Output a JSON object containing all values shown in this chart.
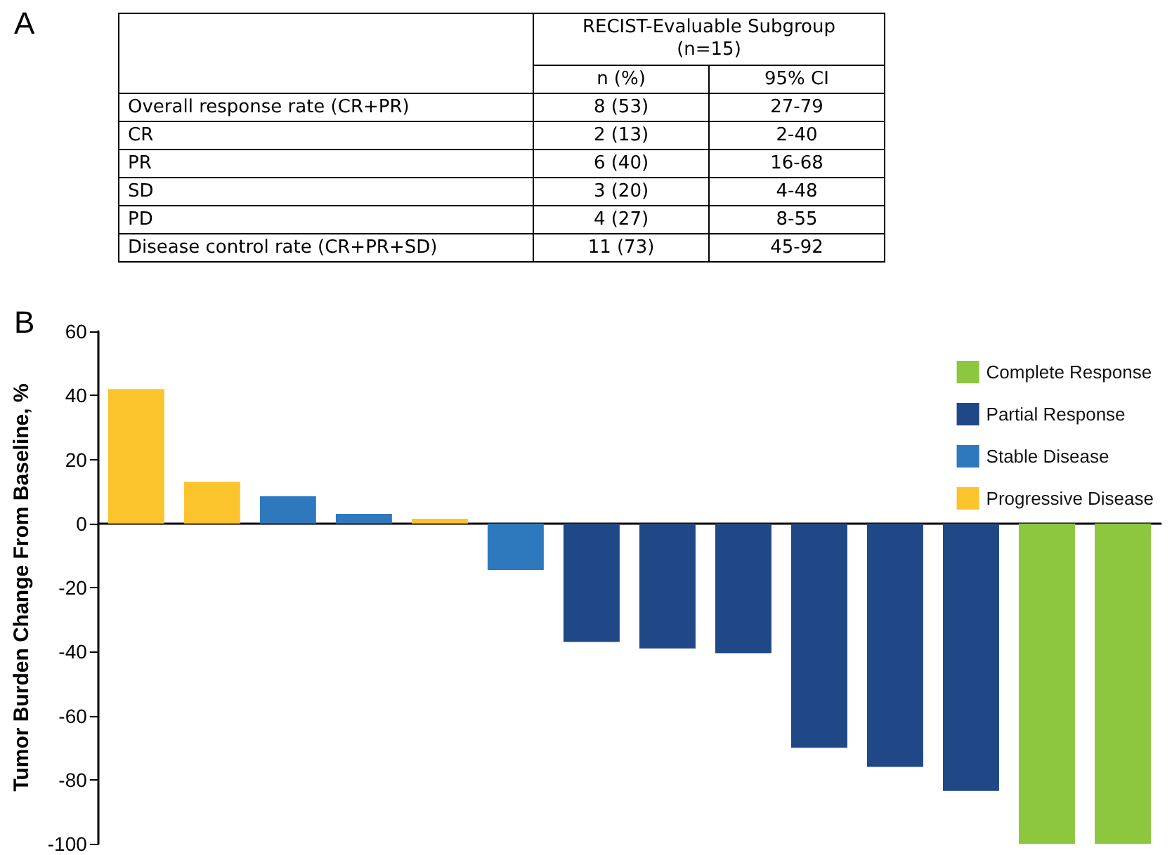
{
  "chart_data": [
    {
      "type": "other",
      "title": "RECIST-Evaluable Subgroup (n=15)",
      "annotations": [
        "A"
      ],
      "categories": [
        "n (%)",
        "95% CI"
      ],
      "y_categories": [
        "Overall response rate (CR+PR)",
        "CR",
        "PR",
        "SD",
        "PD",
        "Disease control rate (CR+PR+SD)"
      ],
      "cell_labels": [
        [
          "8 (53)",
          "27-79"
        ],
        [
          "2 (13)",
          "2-40"
        ],
        [
          "6 (40)",
          "16-68"
        ],
        [
          "3 (20)",
          "4-48"
        ],
        [
          "4 (27)",
          "8-55"
        ],
        [
          "11 (73)",
          "45-92"
        ]
      ]
    },
    {
      "type": "bar",
      "ylabel": "Tumor Burden Change From Baseline, %",
      "annotations": [
        "B"
      ],
      "categories": [
        null,
        null,
        null,
        null,
        null,
        null,
        null,
        null,
        null,
        null,
        null,
        null,
        null,
        null
      ],
      "series": [
        {
          "name": "Complete Response",
          "color": "#8dc63f",
          "values": [
            null,
            null,
            null,
            null,
            null,
            null,
            null,
            null,
            null,
            null,
            null,
            null,
            -100,
            -100
          ]
        },
        {
          "name": "Partial Response",
          "color": "#214886",
          "values": [
            null,
            null,
            null,
            null,
            null,
            null,
            -37,
            -39,
            -40.5,
            -70,
            -76,
            -83.5,
            null,
            null
          ]
        },
        {
          "name": "Stable Disease",
          "color": "#2e78bd",
          "values": [
            null,
            null,
            8.5,
            3,
            null,
            -14.5,
            null,
            null,
            null,
            null,
            null,
            null,
            null,
            null
          ]
        },
        {
          "name": "Progressive Disease",
          "color": "#fcc42c",
          "values": [
            42,
            13,
            null,
            null,
            1.5,
            null,
            null,
            null,
            null,
            null,
            null,
            null,
            null,
            null
          ]
        }
      ],
      "ylim": [
        -100,
        60
      ],
      "yticks": [
        -100,
        -80,
        -60,
        -40,
        -20,
        0,
        20,
        40,
        60
      ],
      "legend": "top right"
    }
  ]
}
